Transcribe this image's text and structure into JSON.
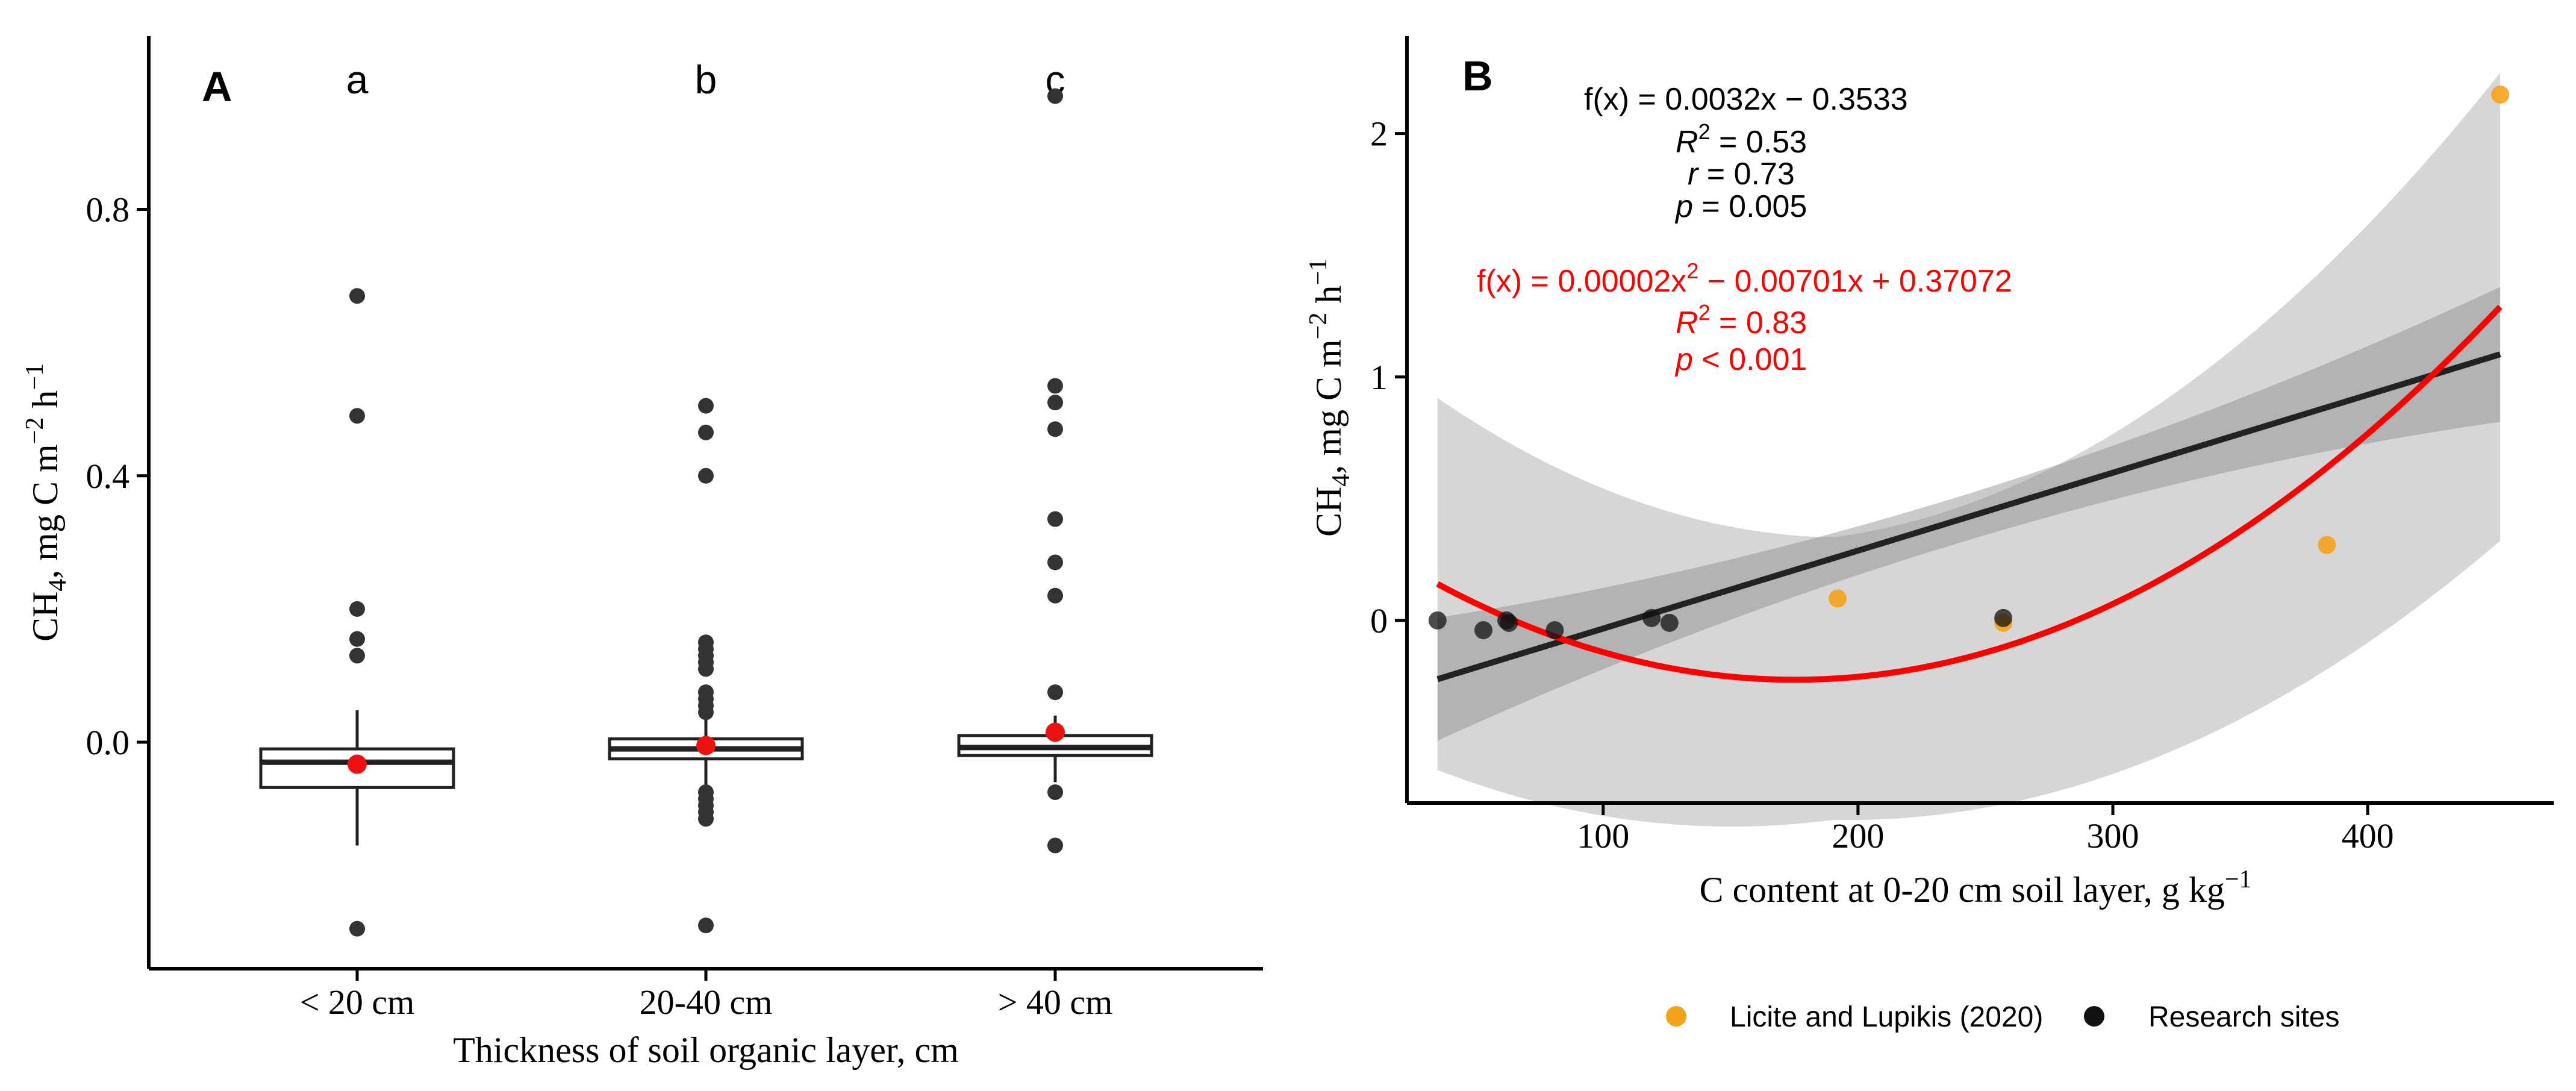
{
  "chart_data": [
    {
      "type": "box",
      "panel_label": "A",
      "xlabel": "Thickness of soil organic layer, cm",
      "ylabel": "CH",
      "ylabel_sub": "4",
      "ylabel_unit": ", mg C  m",
      "ylabel_exp1": "−2",
      "ylabel_mid": " h",
      "ylabel_exp2": "−1",
      "ylim": [
        -0.34,
        1.06
      ],
      "yticks": [
        0.0,
        0.4,
        0.8
      ],
      "ytick_labels": [
        "0.0",
        "0.4",
        "0.8"
      ],
      "categories": [
        "< 20 cm",
        "20-40 cm",
        "> 40 cm"
      ],
      "letters": [
        "a",
        "b",
        "c"
      ],
      "boxes": [
        {
          "q1": -0.068,
          "median": -0.03,
          "q3": -0.01,
          "whisker_low": -0.155,
          "whisker_high": 0.048,
          "mean": -0.033,
          "outliers": [
            0.67,
            0.49,
            0.2,
            0.155,
            0.13,
            -0.28
          ]
        },
        {
          "q1": -0.025,
          "median": -0.01,
          "q3": 0.005,
          "whisker_low": -0.07,
          "whisker_high": 0.05,
          "mean": -0.005,
          "outliers": [
            0.505,
            0.465,
            0.4,
            0.15,
            0.14,
            0.13,
            0.12,
            0.11,
            0.075,
            0.065,
            0.055,
            0.045,
            -0.075,
            -0.085,
            -0.095,
            -0.105,
            -0.115,
            -0.275
          ]
        },
        {
          "q1": -0.02,
          "median": -0.008,
          "q3": 0.01,
          "whisker_low": -0.06,
          "whisker_high": 0.04,
          "mean": 0.015,
          "outliers": [
            0.97,
            0.535,
            0.51,
            0.47,
            0.335,
            0.27,
            0.22,
            0.075,
            -0.075,
            -0.155
          ]
        }
      ],
      "colors": {
        "points": "#333333",
        "mean": "#ee1111"
      }
    },
    {
      "type": "scatter",
      "panel_label": "B",
      "xlabel": "C content at 0-20 cm soil layer, g kg",
      "xlabel_exp": "−1",
      "ylabel": "CH",
      "ylabel_sub": "4",
      "ylabel_unit": ", mg C  m",
      "ylabel_exp1": "−2",
      "ylabel_mid": " h",
      "ylabel_exp2": "−1",
      "xlim": [
        23,
        473
      ],
      "ylim": [
        -0.75,
        2.4
      ],
      "xticks": [
        100,
        200,
        300,
        400
      ],
      "xtick_labels": [
        "100",
        "200",
        "300",
        "400"
      ],
      "yticks": [
        0,
        1,
        2
      ],
      "ytick_labels": [
        "0",
        "1",
        "2"
      ],
      "series": [
        {
          "name": "Licite and Lupikis (2020)",
          "color": "#f5a21b",
          "points": [
            [
              192,
              0.09
            ],
            [
              257,
              -0.01
            ],
            [
              384,
              0.31
            ],
            [
              452,
              2.16
            ]
          ]
        },
        {
          "name": "Research sites",
          "color": "#111111",
          "points": [
            [
              35,
              0.0
            ],
            [
              53,
              -0.04
            ],
            [
              62,
              0.0
            ],
            [
              63,
              -0.01
            ],
            [
              81,
              -0.04
            ],
            [
              119,
              0.01
            ],
            [
              126,
              -0.01
            ],
            [
              257,
              0.01
            ]
          ]
        }
      ],
      "linear_fit": {
        "slope": 0.0032,
        "intercept": -0.3533,
        "color": "#222222"
      },
      "quadratic_fit": {
        "a": 2e-05,
        "b": -0.00701,
        "c": 0.37072,
        "color": "#ff0000"
      },
      "annotations": {
        "linear_eq": "f(x) = 0.0032x − 0.3533",
        "linear_r2_label": "R",
        "linear_r2_exp": "2",
        "linear_r2_value": " = 0.53",
        "linear_r_label": "r",
        "linear_r_value": " = 0.73",
        "linear_p_label": "p",
        "linear_p_value": " = 0.005",
        "quad_eq_part1": "f(x) = 0.00002x",
        "quad_eq_exp": "2",
        "quad_eq_part2": " − 0.00701x + 0.37072",
        "quad_r2_label": "R",
        "quad_r2_exp": "2",
        "quad_r2_value": " = 0.83",
        "quad_p_label": "p",
        "quad_p_value": " < 0.001"
      }
    }
  ]
}
